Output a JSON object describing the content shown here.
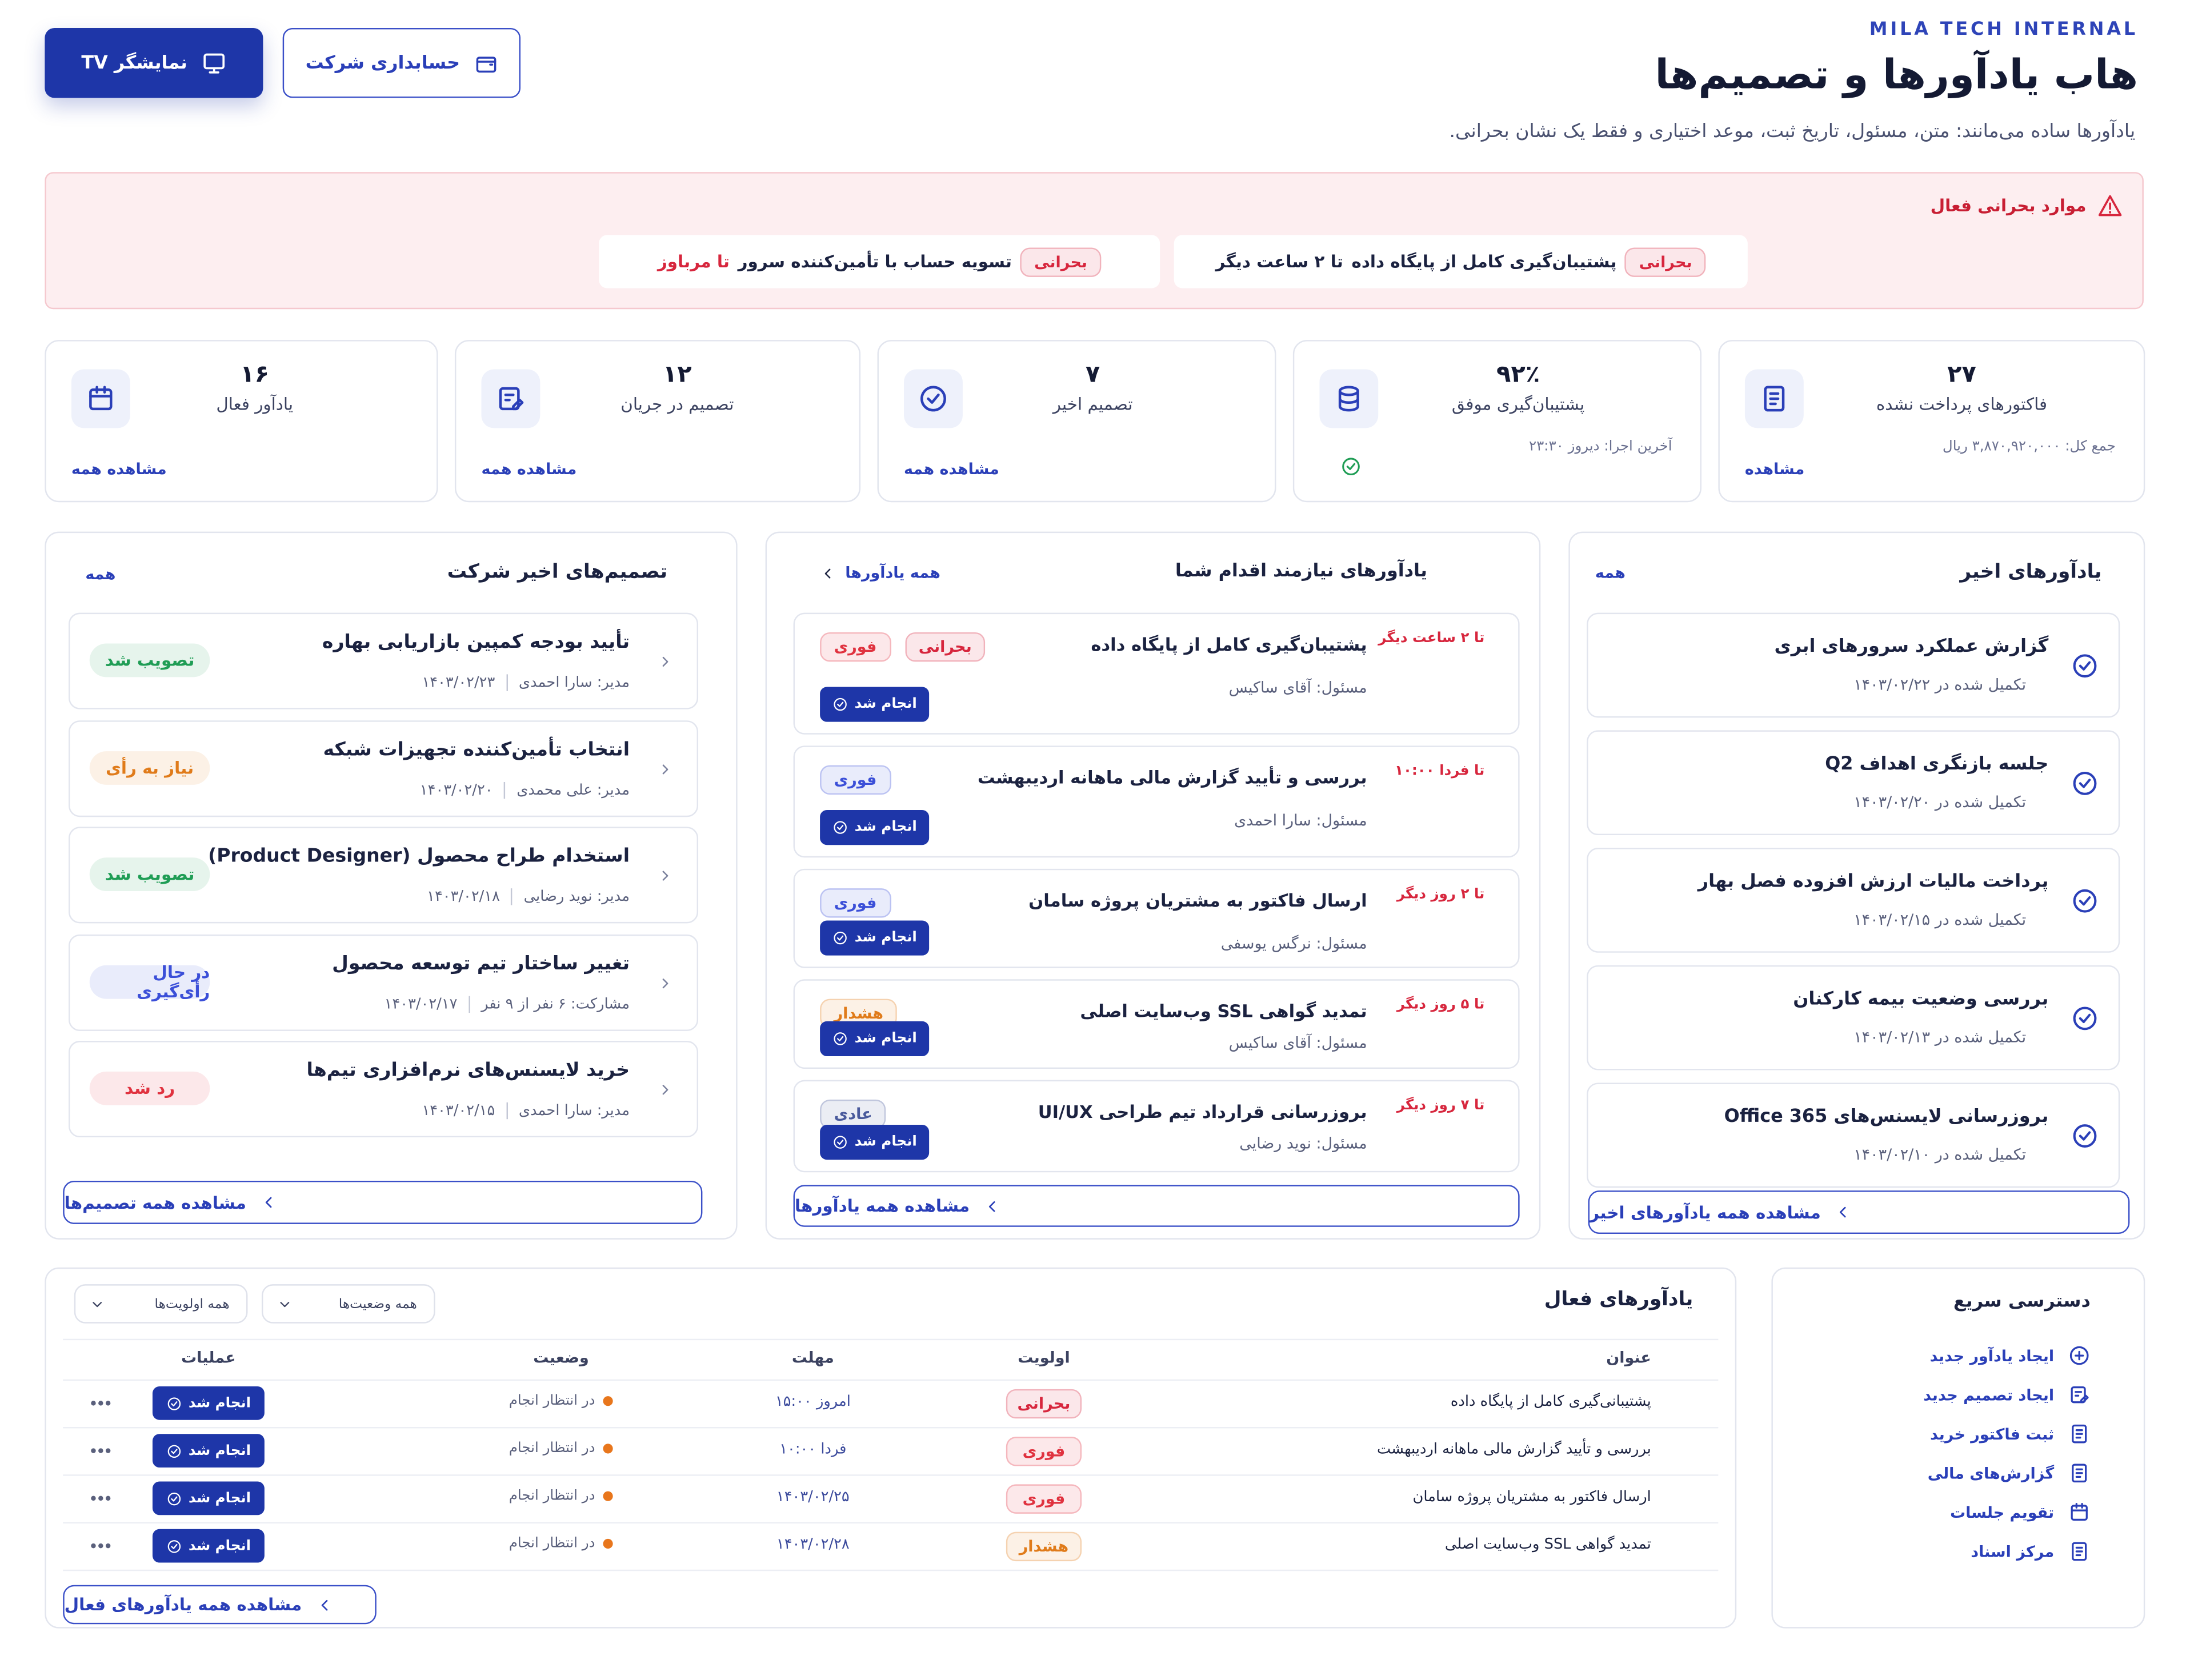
{
  "header": {
    "brand": "MILA TECH INTERNAL",
    "title": "هاب یادآورها و تصمیم‌ها",
    "subtitle": "یادآورها ساده می‌مانند: متن، مسئول، تاریخ ثبت، موعد اختیاری و فقط یک نشان بحرانی.",
    "buttons": [
      "نمایشگر TV",
      "حسابداری شرکت"
    ]
  },
  "critical": {
    "title": "موارد بحرانی فعال",
    "items": [
      {
        "badge": {
          "text": "بحرانی",
          "color": "#d7263d"
        },
        "text": "پشتیبان‌گیری کامل از پایگاه داده",
        "due": "تا ۲ ساعت دیگر"
      },
      {
        "badge": {
          "text": "بحرانی",
          "color": "#d7263d"
        },
        "text": "تسویه حساب با تأمین‌کننده سرور",
        "due": "تا مرباوز"
      }
    ]
  },
  "stats": [
    {
      "value": "۲۷",
      "label": "فاکتورهای پرداخت نشده",
      "note": "جمع کل: ۳,۸۷۰,۹۲۰,۰۰۰ ریال",
      "link": "مشاهده"
    },
    {
      "value": "۹۲٪",
      "label": "پشتیبان‌گیری موفق",
      "note": "آخرین اجرا: دیروز ۲۳:۳۰"
    },
    {
      "value": "۷",
      "label": "تصمیم اخیر",
      "link": "مشاهده همه"
    },
    {
      "value": "۱۲",
      "label": "تصمیم در جریان",
      "link": "مشاهده همه"
    },
    {
      "value": "۱۶",
      "label": "یادآور فعال",
      "link": "مشاهده همه"
    }
  ],
  "recent_reminders": {
    "title": "یادآورهای اخیر",
    "link": "همه",
    "footer": "مشاهده همه یادآورهای اخیر",
    "items": [
      {
        "title": "گزارش عملکرد سرورهای ابری",
        "date": "تکمیل شده در ۱۴۰۳/۰۲/۲۲"
      },
      {
        "title": "جلسه بازنگری اهداف Q2",
        "date": "تکمیل شده در ۱۴۰۳/۰۲/۲۰"
      },
      {
        "title": "پرداخت مالیات ارزش افزوده فصل بهار",
        "date": "تکمیل شده در ۱۴۰۳/۰۲/۱۵"
      },
      {
        "title": "بررسی وضعیت بیمه کارکنان",
        "date": "تکمیل شده در ۱۴۰۳/۰۲/۱۳"
      },
      {
        "title": "بروزرسانی لایسنس‌های Office 365",
        "date": "تکمیل شده در ۱۴۰۳/۰۲/۱۰"
      }
    ]
  },
  "action_reminders": {
    "title": "یادآورهای نیازمند اقدام شما",
    "link": "همه یادآورها",
    "footer": "مشاهده همه یادآورها",
    "items": [
      {
        "due": "تا ۲ ساعت دیگر",
        "title": "پشتیبان‌گیری کامل از پایگاه داده",
        "owner": "مسئول: آقای ساکیس",
        "badges": [
          {
            "text": "فوری",
            "color": "#e0323f"
          },
          {
            "text": "بحرانی",
            "color": "#d7263d"
          }
        ],
        "button": "انجام شد"
      },
      {
        "due": "تا فردا ۱۰:۰۰",
        "title": "بررسی و تأیید گزارش مالی ماهانه اردیبهشت",
        "owner": "مسئول: سارا احمدی",
        "badges": [
          {
            "text": "فوری",
            "color": "#3b4fd8"
          }
        ],
        "button": "انجام شد"
      },
      {
        "due": "تا ۲ روز دیگر",
        "title": "ارسال فاکتور به مشتریان پروژه سامان",
        "owner": "مسئول: نرگس یوسفی",
        "badges": [
          {
            "text": "فوری",
            "color": "#3b4fd8"
          }
        ],
        "button": "انجام شد"
      },
      {
        "due": "تا ۵ روز دیگر",
        "title": "تمدید گواهی SSL وب‌سایت اصلی",
        "owner": "مسئول: آقای ساکیس",
        "badges": [
          {
            "text": "هشدار",
            "color": "#e07b1a"
          }
        ],
        "button": "انجام شد"
      },
      {
        "due": "تا ۷ روز دیگر",
        "title": "بروزرسانی قرارداد تیم طراحی UI/UX",
        "owner": "مسئول: نوید رضایی",
        "badges": [
          {
            "text": "عادی",
            "color": "#4a5a9c"
          }
        ],
        "button": "انجام شد"
      }
    ]
  },
  "decisions": {
    "title": "تصمیم‌های اخیر شرکت",
    "link": "همه",
    "footer": "مشاهده همه تصمیم‌ها",
    "items": [
      {
        "title": "تأیید بودجه کمپین بازاریابی بهاره",
        "date": "۱۴۰۳/۰۲/۲۳",
        "owner": "مدیر: سارا احمدی",
        "status": {
          "text": "تصویب شد",
          "color": "#1f9d55"
        }
      },
      {
        "title": "انتخاب تأمین‌کننده تجهیزات شبکه",
        "date": "۱۴۰۳/۰۲/۲۰",
        "owner": "مدیر: علی محمدی",
        "status": {
          "text": "نیاز به رأی",
          "color": "#e07b1a"
        }
      },
      {
        "title": "استخدام طراح محصول (Product Designer)",
        "date": "۱۴۰۳/۰۲/۱۸",
        "owner": "مدیر: نوید رضایی",
        "status": {
          "text": "تصویب شد",
          "color": "#1f9d55"
        }
      },
      {
        "title": "تغییر ساختار تیم توسعه محصول",
        "date": "۱۴۰۳/۰۲/۱۷",
        "owner": "مشارکت: ۶ نفر از ۹ نفر",
        "status": {
          "text": "در حال رأی‌گیری",
          "color": "#3b4fd8"
        }
      },
      {
        "title": "خرید لایسنس‌های نرم‌افزاری تیم‌ها",
        "date": "۱۴۰۳/۰۲/۱۵",
        "owner": "مدیر: سارا احمدی",
        "status": {
          "text": "رد شد",
          "color": "#e0323f"
        }
      }
    ]
  },
  "active_table": {
    "title": "یادآورهای فعال",
    "filters": [
      "همه وضعیت‌ها",
      "همه اولویت‌ها"
    ],
    "columns": [
      "عنوان",
      "اولویت",
      "مهلت",
      "وضعیت",
      "عملیات"
    ],
    "footer": "مشاهده همه یادآورهای فعال",
    "rows": [
      {
        "title": "پشتیبانی‌گیری کامل از پایگاه داده",
        "priority": {
          "text": "بحرانی",
          "color": "#d7263d"
        },
        "due": "امروز ۱۵:۰۰",
        "status": "در انتظار انجام",
        "action": "انجام شد"
      },
      {
        "title": "بررسی و تأیید گزارش مالی ماهانه اردیبهشت",
        "priority": {
          "text": "فوری",
          "color": "#e0323f"
        },
        "due": "فردا ۱۰:۰۰",
        "status": "در انتظار انجام",
        "action": "انجام شد"
      },
      {
        "title": "ارسال فاکتور به مشتریان پروژه سامان",
        "priority": {
          "text": "فوری",
          "color": "#e0323f"
        },
        "due": "۱۴۰۳/۰۲/۲۵",
        "status": "در انتظار انجام",
        "action": "انجام شد"
      },
      {
        "title": "تمدید گواهی SSL وب‌سایت اصلی",
        "priority": {
          "text": "هشدار",
          "color": "#e07b1a"
        },
        "due": "۱۴۰۳/۰۲/۲۸",
        "status": "در انتظار انجام",
        "action": "انجام شد"
      }
    ]
  },
  "quick_access": {
    "title": "دسترسی سریع",
    "items": [
      "ایجاد یادآور جدید",
      "ایجاد تصمیم جدید",
      "ثبت فاکتور خرید",
      "گزارش‌های مالی",
      "تقویم جلسات",
      "مرکز اسناد"
    ]
  }
}
